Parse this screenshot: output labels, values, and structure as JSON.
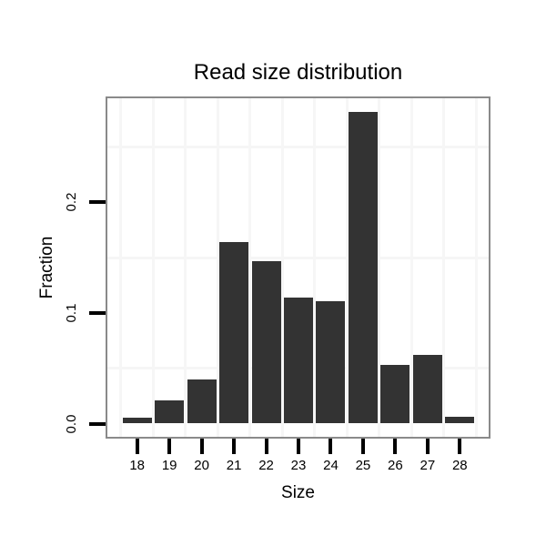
{
  "chart_data": {
    "type": "bar",
    "title": "Read size distribution",
    "xlabel": "Size",
    "ylabel": "Fraction",
    "categories": [
      "18",
      "19",
      "20",
      "21",
      "22",
      "23",
      "24",
      "25",
      "26",
      "27",
      "28"
    ],
    "values": [
      0.005,
      0.021,
      0.04,
      0.164,
      0.147,
      0.114,
      0.111,
      0.282,
      0.053,
      0.062,
      0.006
    ],
    "y_ticks": [
      {
        "value": 0.0,
        "label": "0.0"
      },
      {
        "value": 0.1,
        "label": "0.1"
      },
      {
        "value": 0.2,
        "label": "0.2"
      }
    ],
    "y_minor_gridlines": [
      0.05,
      0.15,
      0.25
    ],
    "ylim": [
      -0.014,
      0.295
    ],
    "grid": "minor-only",
    "legend": "none",
    "colors": {
      "bar": "#333333",
      "panel_border": "#8a8a8a",
      "grid_minor": "#f6f6f6",
      "tick": "#000000",
      "text": "#000000",
      "background": "#ffffff"
    }
  }
}
